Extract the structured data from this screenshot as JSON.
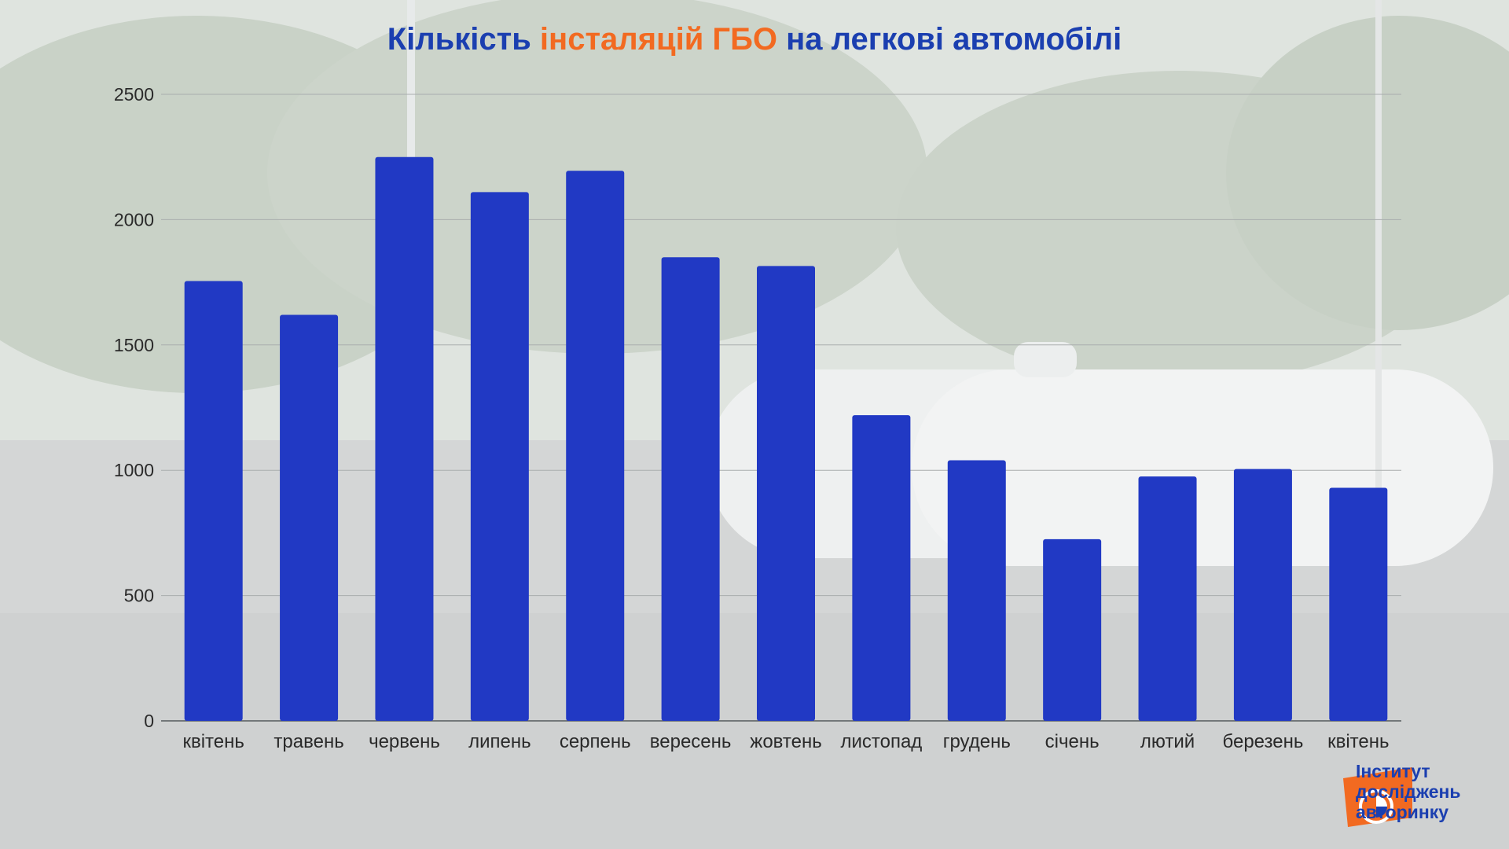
{
  "title": {
    "part1": "Кількість ",
    "highlight": "інсталяцій ГБО",
    "part2": " на легкові автомобілі"
  },
  "colors": {
    "bar": "#2139c4",
    "title": "#1b3fb0",
    "highlight": "#f26a21",
    "logo_orange": "#f26a21"
  },
  "chart_data": {
    "type": "bar",
    "title": "Кількість інсталяцій ГБО на легкові автомобілі",
    "categories": [
      "квітень",
      "травень",
      "червень",
      "липень",
      "серпень",
      "вересень",
      "жовтень",
      "листопад",
      "грудень",
      "січень",
      "лютий",
      "березень",
      "квітень"
    ],
    "values": [
      1755,
      1620,
      2250,
      2110,
      2195,
      1850,
      1815,
      1220,
      1040,
      725,
      975,
      1005,
      930
    ],
    "ylim": [
      0,
      2500
    ],
    "yticks": [
      "0",
      "500",
      "1000",
      "1500",
      "2000",
      "2500"
    ],
    "grid": true,
    "xlabel": "",
    "ylabel": ""
  },
  "logo": {
    "icon": "pie-chart-icon",
    "line1": "Інститут",
    "line2": "досліджень",
    "line3": "авторинку"
  }
}
